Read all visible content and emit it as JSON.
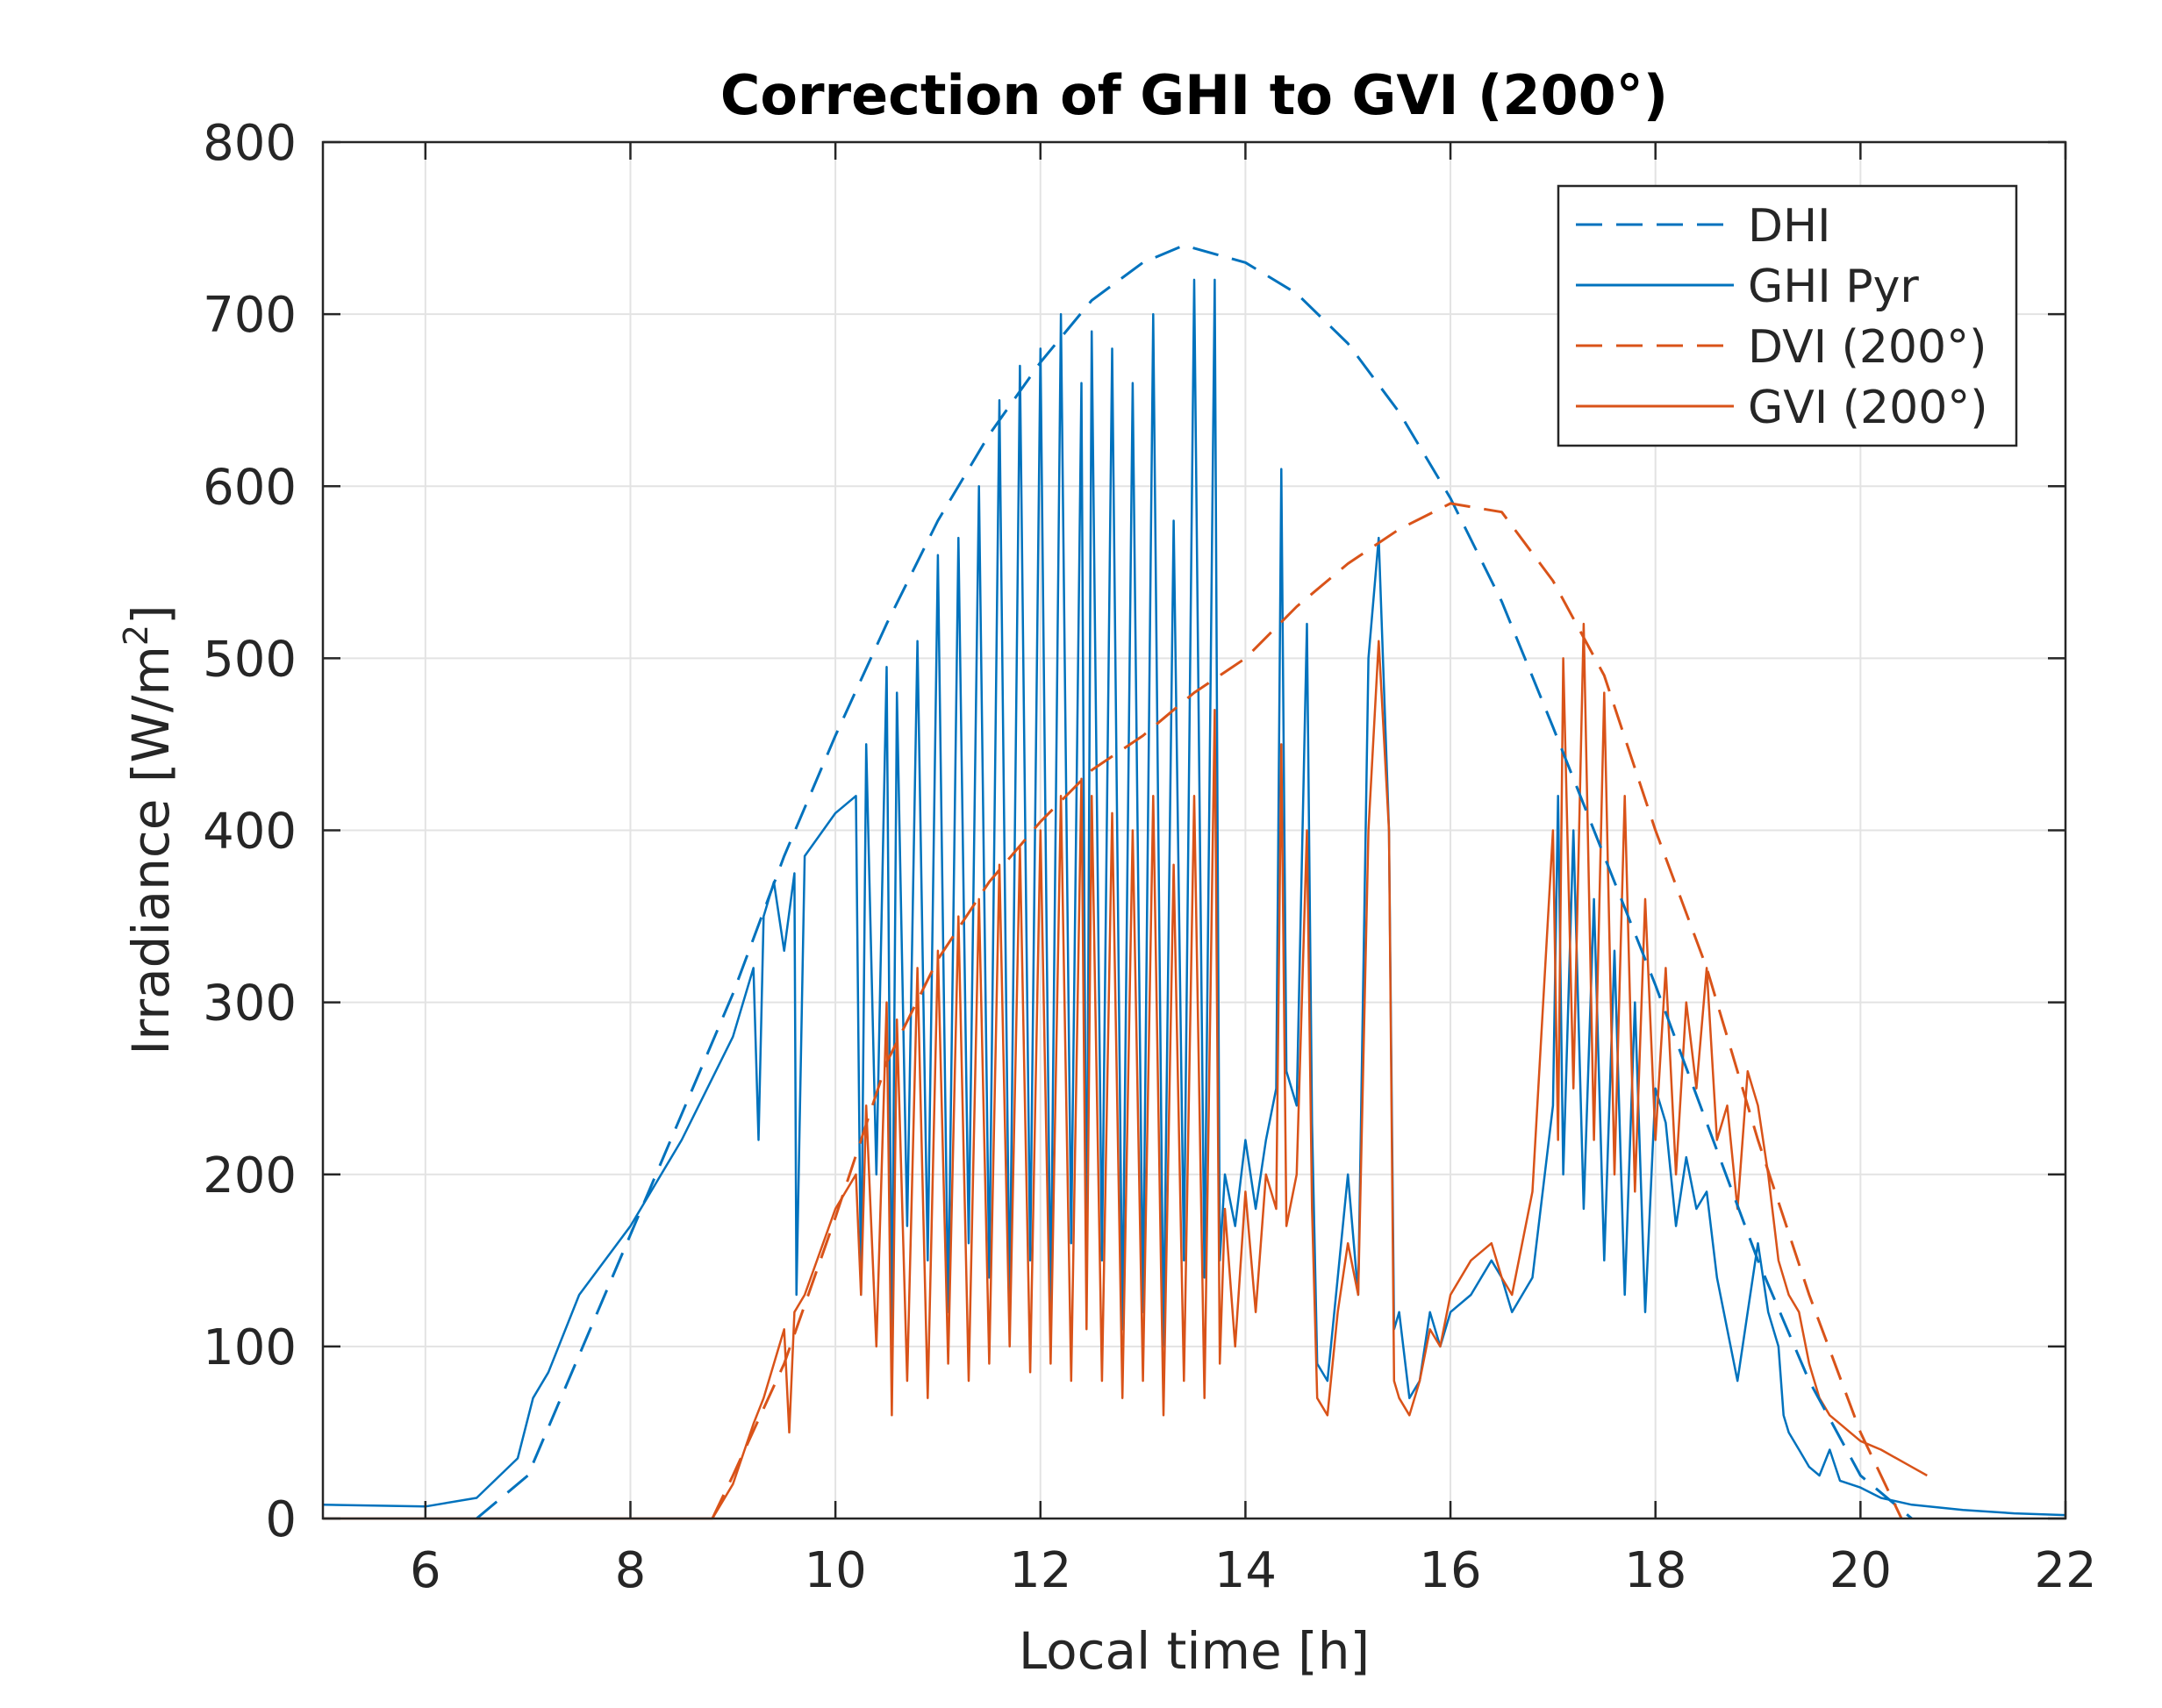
{
  "chart_data": {
    "type": "line",
    "title": "Correction of GHI to GVI (200°)",
    "xlabel": "Local time [h]",
    "ylabel": "Irradiance [W/m",
    "ylabel_sup": "2",
    "ylabel_close": "]",
    "xlim": [
      5,
      22
    ],
    "ylim": [
      0,
      800
    ],
    "xticks": [
      6,
      8,
      10,
      12,
      14,
      16,
      18,
      20,
      22
    ],
    "yticks": [
      0,
      100,
      200,
      300,
      400,
      500,
      600,
      700,
      800
    ],
    "grid": true,
    "legend_position": "top-right",
    "series": [
      {
        "name": "DHI",
        "style": "dashed",
        "color": "#0072BD",
        "x": [
          6.5,
          7.0,
          7.5,
          8.0,
          8.5,
          9.0,
          9.5,
          10.0,
          10.5,
          11.0,
          11.5,
          12.0,
          12.5,
          13.0,
          13.4,
          14.0,
          14.5,
          15.0,
          15.5,
          16.0,
          16.5,
          17.0,
          17.5,
          18.0,
          18.5,
          19.0,
          19.5,
          20.0,
          20.5
        ],
        "y": [
          0,
          25,
          95,
          165,
          235,
          305,
          385,
          455,
          520,
          580,
          630,
          672,
          708,
          730,
          740,
          730,
          712,
          683,
          643,
          593,
          533,
          460,
          385,
          310,
          230,
          150,
          80,
          25,
          0
        ]
      },
      {
        "name": "GHI Pyr",
        "style": "solid",
        "color": "#0072BD",
        "x": [
          5.0,
          6.0,
          6.5,
          6.9,
          7.05,
          7.2,
          7.5,
          8.0,
          8.5,
          9.0,
          9.2,
          9.25,
          9.3,
          9.4,
          9.5,
          9.6,
          9.62,
          9.7,
          10.0,
          10.2,
          10.25,
          10.3,
          10.4,
          10.5,
          10.55,
          10.6,
          10.7,
          10.8,
          10.9,
          11.0,
          11.1,
          11.2,
          11.3,
          11.4,
          11.5,
          11.6,
          11.7,
          11.8,
          11.9,
          12.0,
          12.1,
          12.2,
          12.3,
          12.4,
          12.45,
          12.5,
          12.6,
          12.7,
          12.8,
          12.9,
          13.0,
          13.1,
          13.2,
          13.3,
          13.4,
          13.5,
          13.6,
          13.7,
          13.75,
          13.8,
          13.9,
          14.0,
          14.1,
          14.2,
          14.3,
          14.35,
          14.4,
          14.5,
          14.6,
          14.65,
          14.7,
          14.8,
          14.9,
          15.0,
          15.1,
          15.2,
          15.3,
          15.4,
          15.45,
          15.5,
          15.6,
          15.7,
          15.8,
          15.9,
          16.0,
          16.2,
          16.4,
          16.5,
          16.6,
          16.8,
          17.0,
          17.05,
          17.1,
          17.2,
          17.3,
          17.4,
          17.5,
          17.6,
          17.7,
          17.8,
          17.9,
          18.0,
          18.1,
          18.2,
          18.3,
          18.4,
          18.5,
          18.6,
          18.7,
          18.8,
          18.9,
          19.0,
          19.1,
          19.2,
          19.25,
          19.3,
          19.4,
          19.5,
          19.6,
          19.7,
          19.8,
          19.9,
          20.0,
          20.2,
          20.5,
          21.0,
          21.5,
          22.0
        ],
        "y": [
          8,
          7,
          12,
          35,
          70,
          85,
          130,
          170,
          220,
          280,
          320,
          220,
          350,
          370,
          330,
          375,
          130,
          385,
          410,
          420,
          130,
          450,
          200,
          495,
          100,
          480,
          170,
          510,
          150,
          560,
          120,
          570,
          160,
          600,
          140,
          650,
          120,
          670,
          150,
          680,
          120,
          700,
          160,
          660,
          130,
          690,
          150,
          680,
          110,
          660,
          120,
          700,
          100,
          580,
          150,
          720,
          140,
          720,
          150,
          200,
          170,
          220,
          180,
          220,
          250,
          610,
          260,
          240,
          520,
          230,
          90,
          80,
          140,
          200,
          130,
          500,
          570,
          400,
          110,
          120,
          70,
          80,
          120,
          100,
          120,
          130,
          150,
          140,
          120,
          140,
          240,
          420,
          200,
          400,
          180,
          360,
          150,
          330,
          130,
          300,
          120,
          250,
          230,
          170,
          210,
          180,
          190,
          140,
          110,
          80,
          120,
          160,
          120,
          100,
          60,
          50,
          40,
          30,
          25,
          40,
          22,
          20,
          18,
          12,
          8,
          5,
          3,
          2
        ]
      },
      {
        "name": "DVI (200°)",
        "style": "dashed",
        "color": "#D95319",
        "x": [
          8.8,
          9.0,
          9.5,
          10.0,
          10.5,
          11.0,
          11.5,
          12.0,
          12.5,
          13.0,
          13.5,
          14.0,
          14.5,
          15.0,
          15.5,
          16.0,
          16.5,
          17.0,
          17.5,
          18.0,
          18.5,
          19.0,
          19.5,
          20.0,
          20.4
        ],
        "y": [
          0,
          25,
          90,
          175,
          265,
          325,
          370,
          405,
          435,
          455,
          480,
          500,
          530,
          555,
          575,
          590,
          585,
          545,
          490,
          400,
          320,
          220,
          130,
          50,
          0
        ]
      },
      {
        "name": "GVI (200°)",
        "style": "solid",
        "color": "#D95319",
        "x": [
          5.0,
          8.8,
          9.0,
          9.2,
          9.3,
          9.4,
          9.5,
          9.55,
          9.6,
          9.7,
          10.0,
          10.2,
          10.25,
          10.3,
          10.4,
          10.5,
          10.55,
          10.6,
          10.7,
          10.8,
          10.9,
          11.0,
          11.1,
          11.2,
          11.3,
          11.4,
          11.5,
          11.6,
          11.7,
          11.8,
          11.9,
          12.0,
          12.1,
          12.2,
          12.3,
          12.4,
          12.45,
          12.5,
          12.6,
          12.7,
          12.8,
          12.9,
          13.0,
          13.1,
          13.2,
          13.3,
          13.4,
          13.5,
          13.6,
          13.7,
          13.75,
          13.8,
          13.9,
          14.0,
          14.1,
          14.2,
          14.3,
          14.35,
          14.4,
          14.5,
          14.6,
          14.65,
          14.7,
          14.8,
          14.9,
          15.0,
          15.1,
          15.2,
          15.3,
          15.4,
          15.45,
          15.5,
          15.6,
          15.7,
          15.8,
          15.9,
          16.0,
          16.2,
          16.4,
          16.5,
          16.6,
          16.8,
          17.0,
          17.05,
          17.1,
          17.2,
          17.3,
          17.4,
          17.5,
          17.6,
          17.7,
          17.8,
          17.9,
          18.0,
          18.1,
          18.2,
          18.3,
          18.4,
          18.5,
          18.6,
          18.7,
          18.8,
          18.9,
          19.0,
          19.1,
          19.2,
          19.3,
          19.4,
          19.5,
          19.6,
          19.7,
          19.8,
          19.9,
          20.0,
          20.2,
          20.5,
          20.65
        ],
        "y": [
          0,
          0,
          20,
          55,
          70,
          90,
          110,
          50,
          120,
          130,
          180,
          200,
          130,
          240,
          100,
          300,
          60,
          290,
          80,
          320,
          70,
          330,
          90,
          350,
          80,
          360,
          90,
          380,
          100,
          390,
          85,
          400,
          90,
          420,
          80,
          430,
          110,
          420,
          80,
          410,
          70,
          400,
          80,
          420,
          60,
          380,
          80,
          420,
          70,
          470,
          90,
          180,
          100,
          190,
          120,
          200,
          180,
          450,
          170,
          200,
          400,
          180,
          70,
          60,
          120,
          160,
          130,
          400,
          510,
          400,
          80,
          70,
          60,
          80,
          110,
          100,
          130,
          150,
          160,
          140,
          130,
          190,
          400,
          220,
          500,
          250,
          520,
          220,
          480,
          200,
          420,
          190,
          360,
          220,
          320,
          200,
          300,
          250,
          320,
          220,
          240,
          180,
          260,
          240,
          200,
          150,
          130,
          120,
          90,
          70,
          60,
          55,
          50,
          45,
          40,
          30,
          25
        ]
      }
    ]
  }
}
